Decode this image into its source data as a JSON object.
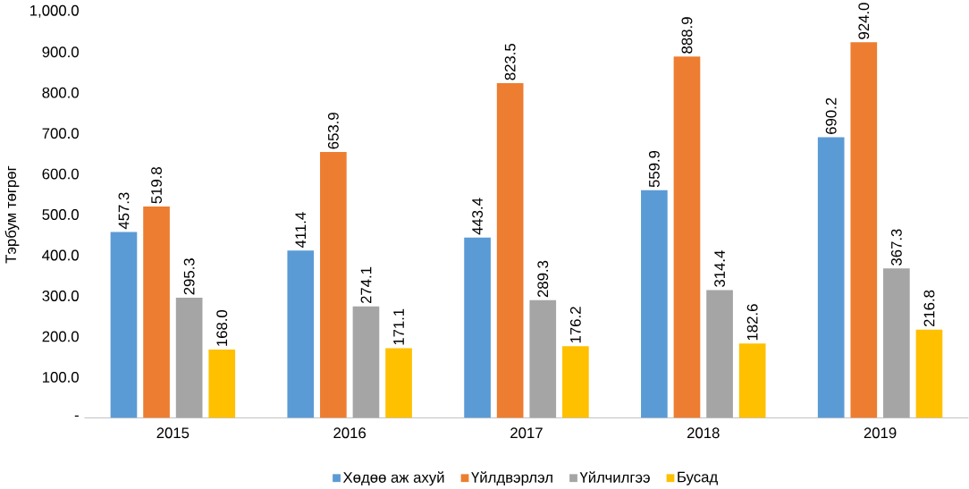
{
  "chart_data": {
    "type": "bar",
    "ylabel": "Тэрбум төгрөг",
    "categories": [
      "2015",
      "2016",
      "2017",
      "2018",
      "2019"
    ],
    "series": [
      {
        "name": "Хөдөө аж ахуй",
        "color": "#5b9bd5",
        "values": [
          457.3,
          411.4,
          443.4,
          559.9,
          690.2
        ],
        "value_labels": [
          "457.3",
          "411.4",
          "443.4",
          "559.9",
          "690.2"
        ]
      },
      {
        "name": "Үйлдвэрлэл",
        "color": "#ed7d31",
        "values": [
          519.8,
          653.9,
          823.5,
          888.9,
          924.0
        ],
        "value_labels": [
          "519.8",
          "653.9",
          "823.5",
          "888.9",
          "924.0"
        ]
      },
      {
        "name": "Үйлчилгээ",
        "color": "#a5a5a5",
        "values": [
          295.3,
          274.1,
          289.3,
          314.4,
          367.3
        ],
        "value_labels": [
          "295.3",
          "274.1",
          "289.3",
          "314.4",
          "367.3"
        ]
      },
      {
        "name": "Бусад",
        "color": "#ffc000",
        "values": [
          168.0,
          171.1,
          176.2,
          182.6,
          216.8
        ],
        "value_labels": [
          "168.0",
          "171.1",
          "176.2",
          "182.6",
          "216.8"
        ]
      }
    ],
    "ylim": [
      0,
      1000
    ],
    "yticks": [
      {
        "value": 0,
        "label": "-"
      },
      {
        "value": 100,
        "label": "100.0"
      },
      {
        "value": 200,
        "label": "200.0"
      },
      {
        "value": 300,
        "label": "300.0"
      },
      {
        "value": 400,
        "label": "400.0"
      },
      {
        "value": 500,
        "label": "500.0"
      },
      {
        "value": 600,
        "label": "600.0"
      },
      {
        "value": 700,
        "label": "700.0"
      },
      {
        "value": 800,
        "label": "800.0"
      },
      {
        "value": 900,
        "label": "900.0"
      },
      {
        "value": 1000,
        "label": "1,000.0"
      }
    ],
    "legend": "bottom",
    "grid": false
  }
}
